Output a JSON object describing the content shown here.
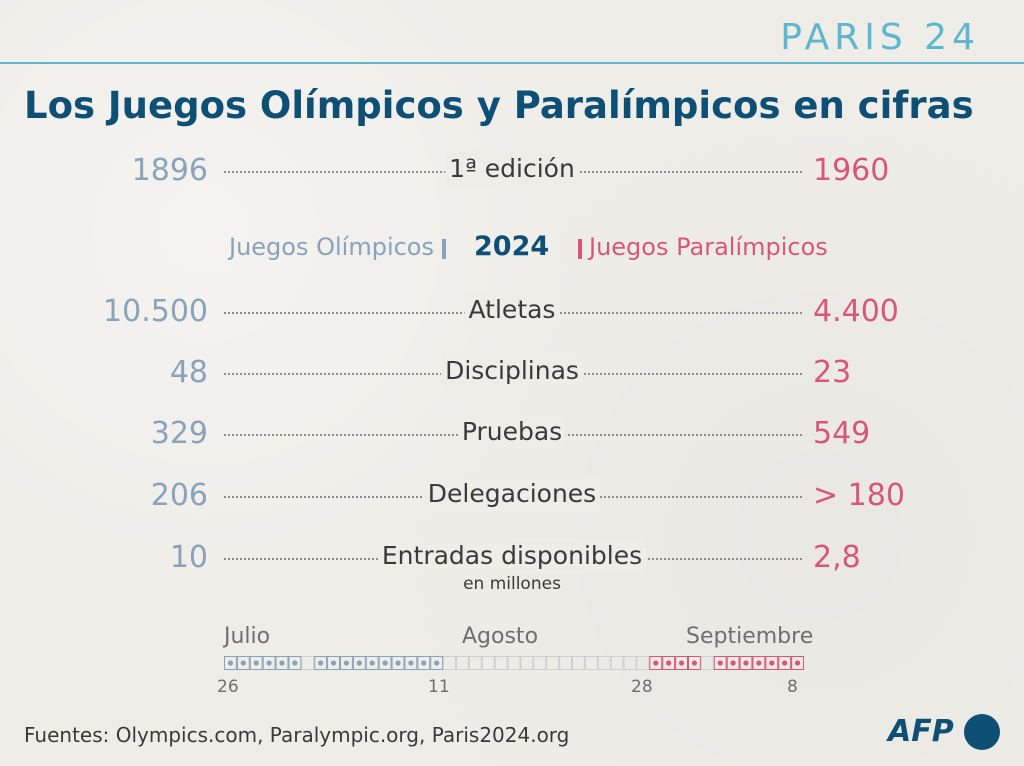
{
  "header": {
    "brand": "PARIS 24",
    "title": "Los Juegos Olímpicos y Paralímpicos en cifras"
  },
  "legend": {
    "olympic": "Juegos Olímpicos",
    "year": "2024",
    "paralympic": "Juegos Paralímpicos"
  },
  "rows": [
    {
      "label": "1ª edición",
      "olympic": "1896",
      "paralympic": "1960",
      "sublabel": ""
    },
    {
      "label": "Atletas",
      "olympic": "10.500",
      "paralympic": "4.400",
      "sublabel": ""
    },
    {
      "label": "Disciplinas",
      "olympic": "48",
      "paralympic": "23",
      "sublabel": ""
    },
    {
      "label": "Pruebas",
      "olympic": "329",
      "paralympic": "549",
      "sublabel": ""
    },
    {
      "label": "Delegaciones",
      "olympic": "206",
      "paralympic": "> 180",
      "sublabel": ""
    },
    {
      "label": "Entradas disponibles",
      "olympic": "10",
      "paralympic": "2,8",
      "sublabel": "en millones"
    }
  ],
  "calendar": {
    "months": [
      "Julio",
      "Agosto",
      "Septiembre"
    ],
    "dates": [
      "26",
      "11",
      "28",
      "8"
    ],
    "olympic_color": "#8aa3bb",
    "paralympic_color": "#d8567d"
  },
  "footer": {
    "sources": "Fuentes: Olympics.com, Paralympic.org, Paris2024.org",
    "logo": "AFP"
  }
}
